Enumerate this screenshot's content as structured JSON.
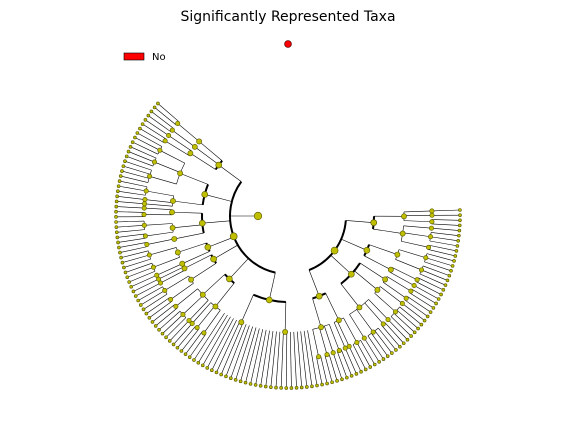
{
  "chart_data": {
    "type": "cladogram",
    "title": "Significantly Represented Taxa",
    "legend": [
      {
        "label": "No",
        "color": "#ff0000"
      }
    ],
    "node_color": "#bfbf00",
    "highlight_color": "#ff0000",
    "legend_position": "top-left"
  }
}
